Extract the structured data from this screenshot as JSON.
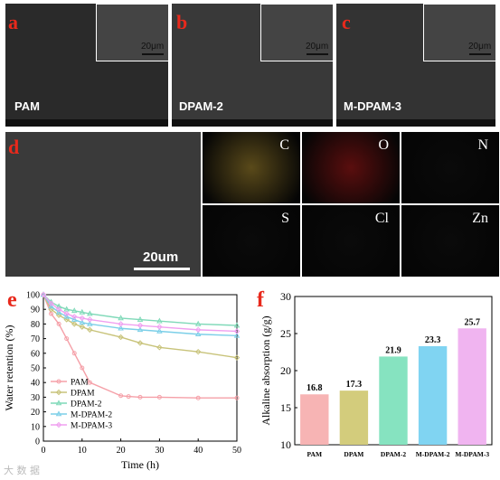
{
  "panels": {
    "a": {
      "letter": "a",
      "sample": "PAM",
      "inset_scale": "20μm"
    },
    "b": {
      "letter": "b",
      "sample": "DPAM-2",
      "inset_scale": "20μm"
    },
    "c": {
      "letter": "c",
      "sample": "M-DPAM-3",
      "inset_scale": "20μm"
    },
    "d": {
      "letter": "d",
      "scale": "20um",
      "elements": [
        "C",
        "O",
        "N",
        "S",
        "Cl",
        "Zn"
      ],
      "element_colors": [
        "#5a4a1a",
        "#5a0e0e",
        "#0a0a0a",
        "#0a0a0a",
        "#0a0a0a",
        "#0a0a0a"
      ]
    },
    "e": {
      "letter": "e"
    },
    "f": {
      "letter": "f"
    }
  },
  "watermark": "大 数 据",
  "chart_data": [
    {
      "type": "line",
      "panel": "e",
      "xlabel": "Time (h)",
      "ylabel": "Water retention (%)",
      "xlim": [
        0,
        50
      ],
      "ylim": [
        0,
        100
      ],
      "xticks": [
        0,
        10,
        20,
        30,
        40,
        50
      ],
      "yticks": [
        0,
        10,
        20,
        30,
        40,
        50,
        60,
        70,
        80,
        90,
        100
      ],
      "legend_position": "lower-left",
      "series": [
        {
          "name": "PAM",
          "color": "#f5a0a8",
          "marker": "circle",
          "x": [
            0,
            2,
            4,
            6,
            8,
            10,
            12,
            20,
            22,
            25,
            30,
            40,
            50
          ],
          "y": [
            100,
            87,
            80,
            70,
            60,
            50,
            40,
            31,
            30.5,
            30,
            30,
            29.5,
            29.5
          ]
        },
        {
          "name": "DPAM",
          "color": "#c8c37a",
          "marker": "diamond",
          "x": [
            0,
            2,
            4,
            6,
            8,
            10,
            12,
            20,
            25,
            30,
            40,
            50
          ],
          "y": [
            100,
            90,
            86,
            83,
            80,
            78,
            76,
            71,
            67,
            64,
            61,
            57
          ]
        },
        {
          "name": "DPAM-2",
          "color": "#7fd9b8",
          "marker": "triangle",
          "x": [
            0,
            2,
            4,
            6,
            8,
            10,
            12,
            20,
            25,
            30,
            40,
            50
          ],
          "y": [
            100,
            95,
            92,
            90,
            89,
            88,
            87,
            84,
            83,
            82,
            80,
            79
          ]
        },
        {
          "name": "M-DPAM-2",
          "color": "#7ccfe8",
          "marker": "triangle",
          "x": [
            0,
            2,
            4,
            6,
            8,
            10,
            12,
            20,
            25,
            30,
            40,
            50
          ],
          "y": [
            100,
            92,
            88,
            85,
            83,
            81,
            80,
            77,
            76,
            75,
            73,
            72
          ]
        },
        {
          "name": "M-DPAM-3",
          "color": "#f0a0f0",
          "marker": "diamond",
          "x": [
            0,
            2,
            4,
            6,
            8,
            10,
            12,
            20,
            25,
            30,
            40,
            50
          ],
          "y": [
            100,
            94,
            90,
            87,
            85,
            84,
            83,
            80,
            79,
            78,
            76,
            75
          ]
        }
      ]
    },
    {
      "type": "bar",
      "panel": "f",
      "xlabel": "",
      "ylabel": "Alkaline absorption (g/g)",
      "ylim": [
        10,
        30
      ],
      "yticks": [
        10,
        15,
        20,
        25,
        30
      ],
      "categories": [
        "PAM",
        "DPAM",
        "DPAM-2",
        "M-DPAM-2",
        "M-DPAM-3"
      ],
      "values": [
        16.8,
        17.3,
        21.9,
        23.3,
        25.7
      ],
      "value_labels": [
        "16.8",
        "17.3",
        "21.9",
        "23.3",
        "25.7"
      ],
      "colors": [
        "#f7b4b4",
        "#d3cc7c",
        "#86e3c0",
        "#80d4f2",
        "#f0b4f0"
      ]
    }
  ]
}
